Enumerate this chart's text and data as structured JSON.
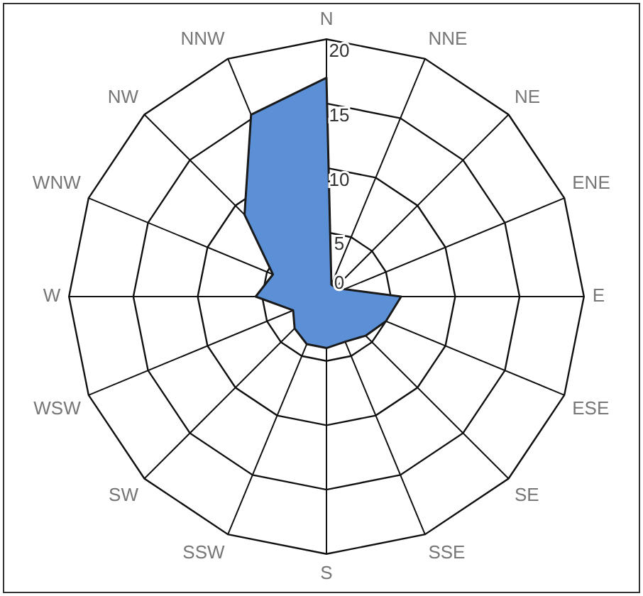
{
  "chart_data": {
    "type": "radar",
    "categories": [
      "N",
      "NNE",
      "NE",
      "ENE",
      "E",
      "ESE",
      "SE",
      "SSE",
      "S",
      "SSW",
      "SW",
      "WSW",
      "W",
      "WNW",
      "NW",
      "NNW"
    ],
    "series": [
      {
        "color": "#5b8fd6",
        "values": [
          17,
          1,
          1,
          1.5,
          5.8,
          5,
          4.3,
          3.8,
          4,
          4,
          3.5,
          2.8,
          5.5,
          4.5,
          9,
          15.3
        ]
      }
    ],
    "ylim": [
      0,
      20
    ],
    "yticks": [
      0,
      5,
      10,
      15,
      20
    ],
    "grid": true,
    "legend": false,
    "marker": "none"
  }
}
